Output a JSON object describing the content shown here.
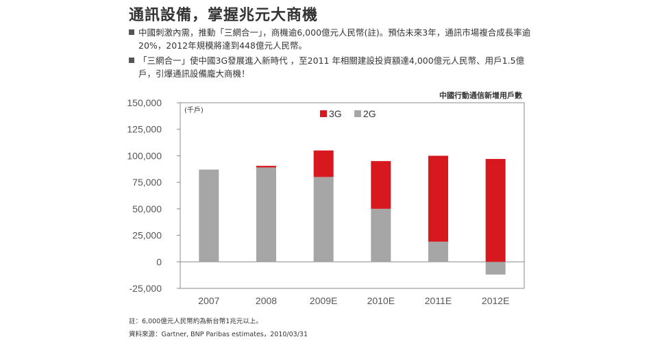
{
  "title": "通訊設備，掌握兆元大商機",
  "bullets": [
    "中國刺激內需，推動「三網合一」，商機逾6,000億元人民幣(註)。預估未來3年，通訊市場複合成長率逾20%，2012年規模將達到448億元人民幣。",
    "「三網合一」使中國3G發展進入新時代 ，至2011 年相關建設投資額達4,000億元人民幣、用戶1.5億戶，引爆通訊設備龐大商機！"
  ],
  "chart_caption": "中國行動通信新增用戶數",
  "footnote": "註：6,000億元人民幣約為新台幣1兆元以上。",
  "source": "資料來源：Gartner, BNP Paribas estimates，2010/03/31",
  "colors": {
    "3g": "#d7191f",
    "2g": "#a6a6a6",
    "axis": "#888888"
  },
  "chart_data": {
    "type": "bar",
    "stacked": true,
    "unit_label": "(千戶)",
    "categories": [
      "2007",
      "2008",
      "2009E",
      "2010E",
      "2011E",
      "2012E"
    ],
    "series": [
      {
        "name": "2G",
        "values": [
          87000,
          89000,
          80000,
          50000,
          19000,
          -12000
        ]
      },
      {
        "name": "3G",
        "values": [
          0,
          1500,
          25000,
          45000,
          81000,
          97000
        ]
      }
    ],
    "legend_order": [
      "3G",
      "2G"
    ],
    "ylim": [
      -25000,
      150000
    ],
    "yticks": [
      {
        "value": 150000,
        "label": "150,000"
      },
      {
        "value": 125000,
        "label": "125,000"
      },
      {
        "value": 100000,
        "label": "100,000"
      },
      {
        "value": 75000,
        "label": "75,000"
      },
      {
        "value": 50000,
        "label": "50,000"
      },
      {
        "value": 25000,
        "label": "25,000"
      },
      {
        "value": 0,
        "label": "0"
      },
      {
        "value": -25000,
        "label": "-25,000"
      }
    ],
    "legend_position": "top-center",
    "grid": false
  }
}
